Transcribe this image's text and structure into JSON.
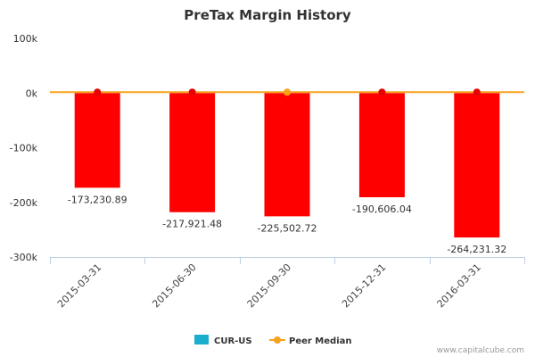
{
  "chart_data": {
    "type": "bar",
    "title": "PreTax Margin History",
    "categories": [
      "2015-03-31",
      "2015-06-30",
      "2015-09-30",
      "2015-12-31",
      "2016-03-31"
    ],
    "series": [
      {
        "name": "CUR-US",
        "type": "bar",
        "values": [
          -173230.89,
          -217921.48,
          -225502.72,
          -190606.04,
          -264231.32
        ],
        "labels": [
          "-173,230.89",
          "-217,921.48",
          "-225,502.72",
          "-190,606.04",
          "-264,231.32"
        ],
        "color": "#ff0000",
        "legend_color": "#1aadce"
      },
      {
        "name": "Peer Median",
        "type": "line",
        "values": [
          0,
          0,
          0,
          0,
          0
        ],
        "color": "#f7a21b",
        "marker_colors": [
          "#e60000",
          "#e60000",
          "#f7a21b",
          "#e60000",
          "#e60000"
        ]
      }
    ],
    "yticks": [
      100000,
      0,
      -100000,
      -200000,
      -300000
    ],
    "ytick_labels": [
      "100k",
      "0k",
      "-100k",
      "-200k",
      "-300k"
    ],
    "ylim": [
      -300000,
      100000
    ],
    "grid": false,
    "legend_position": "bottom-center"
  },
  "credit": "www.capitalcube.com"
}
